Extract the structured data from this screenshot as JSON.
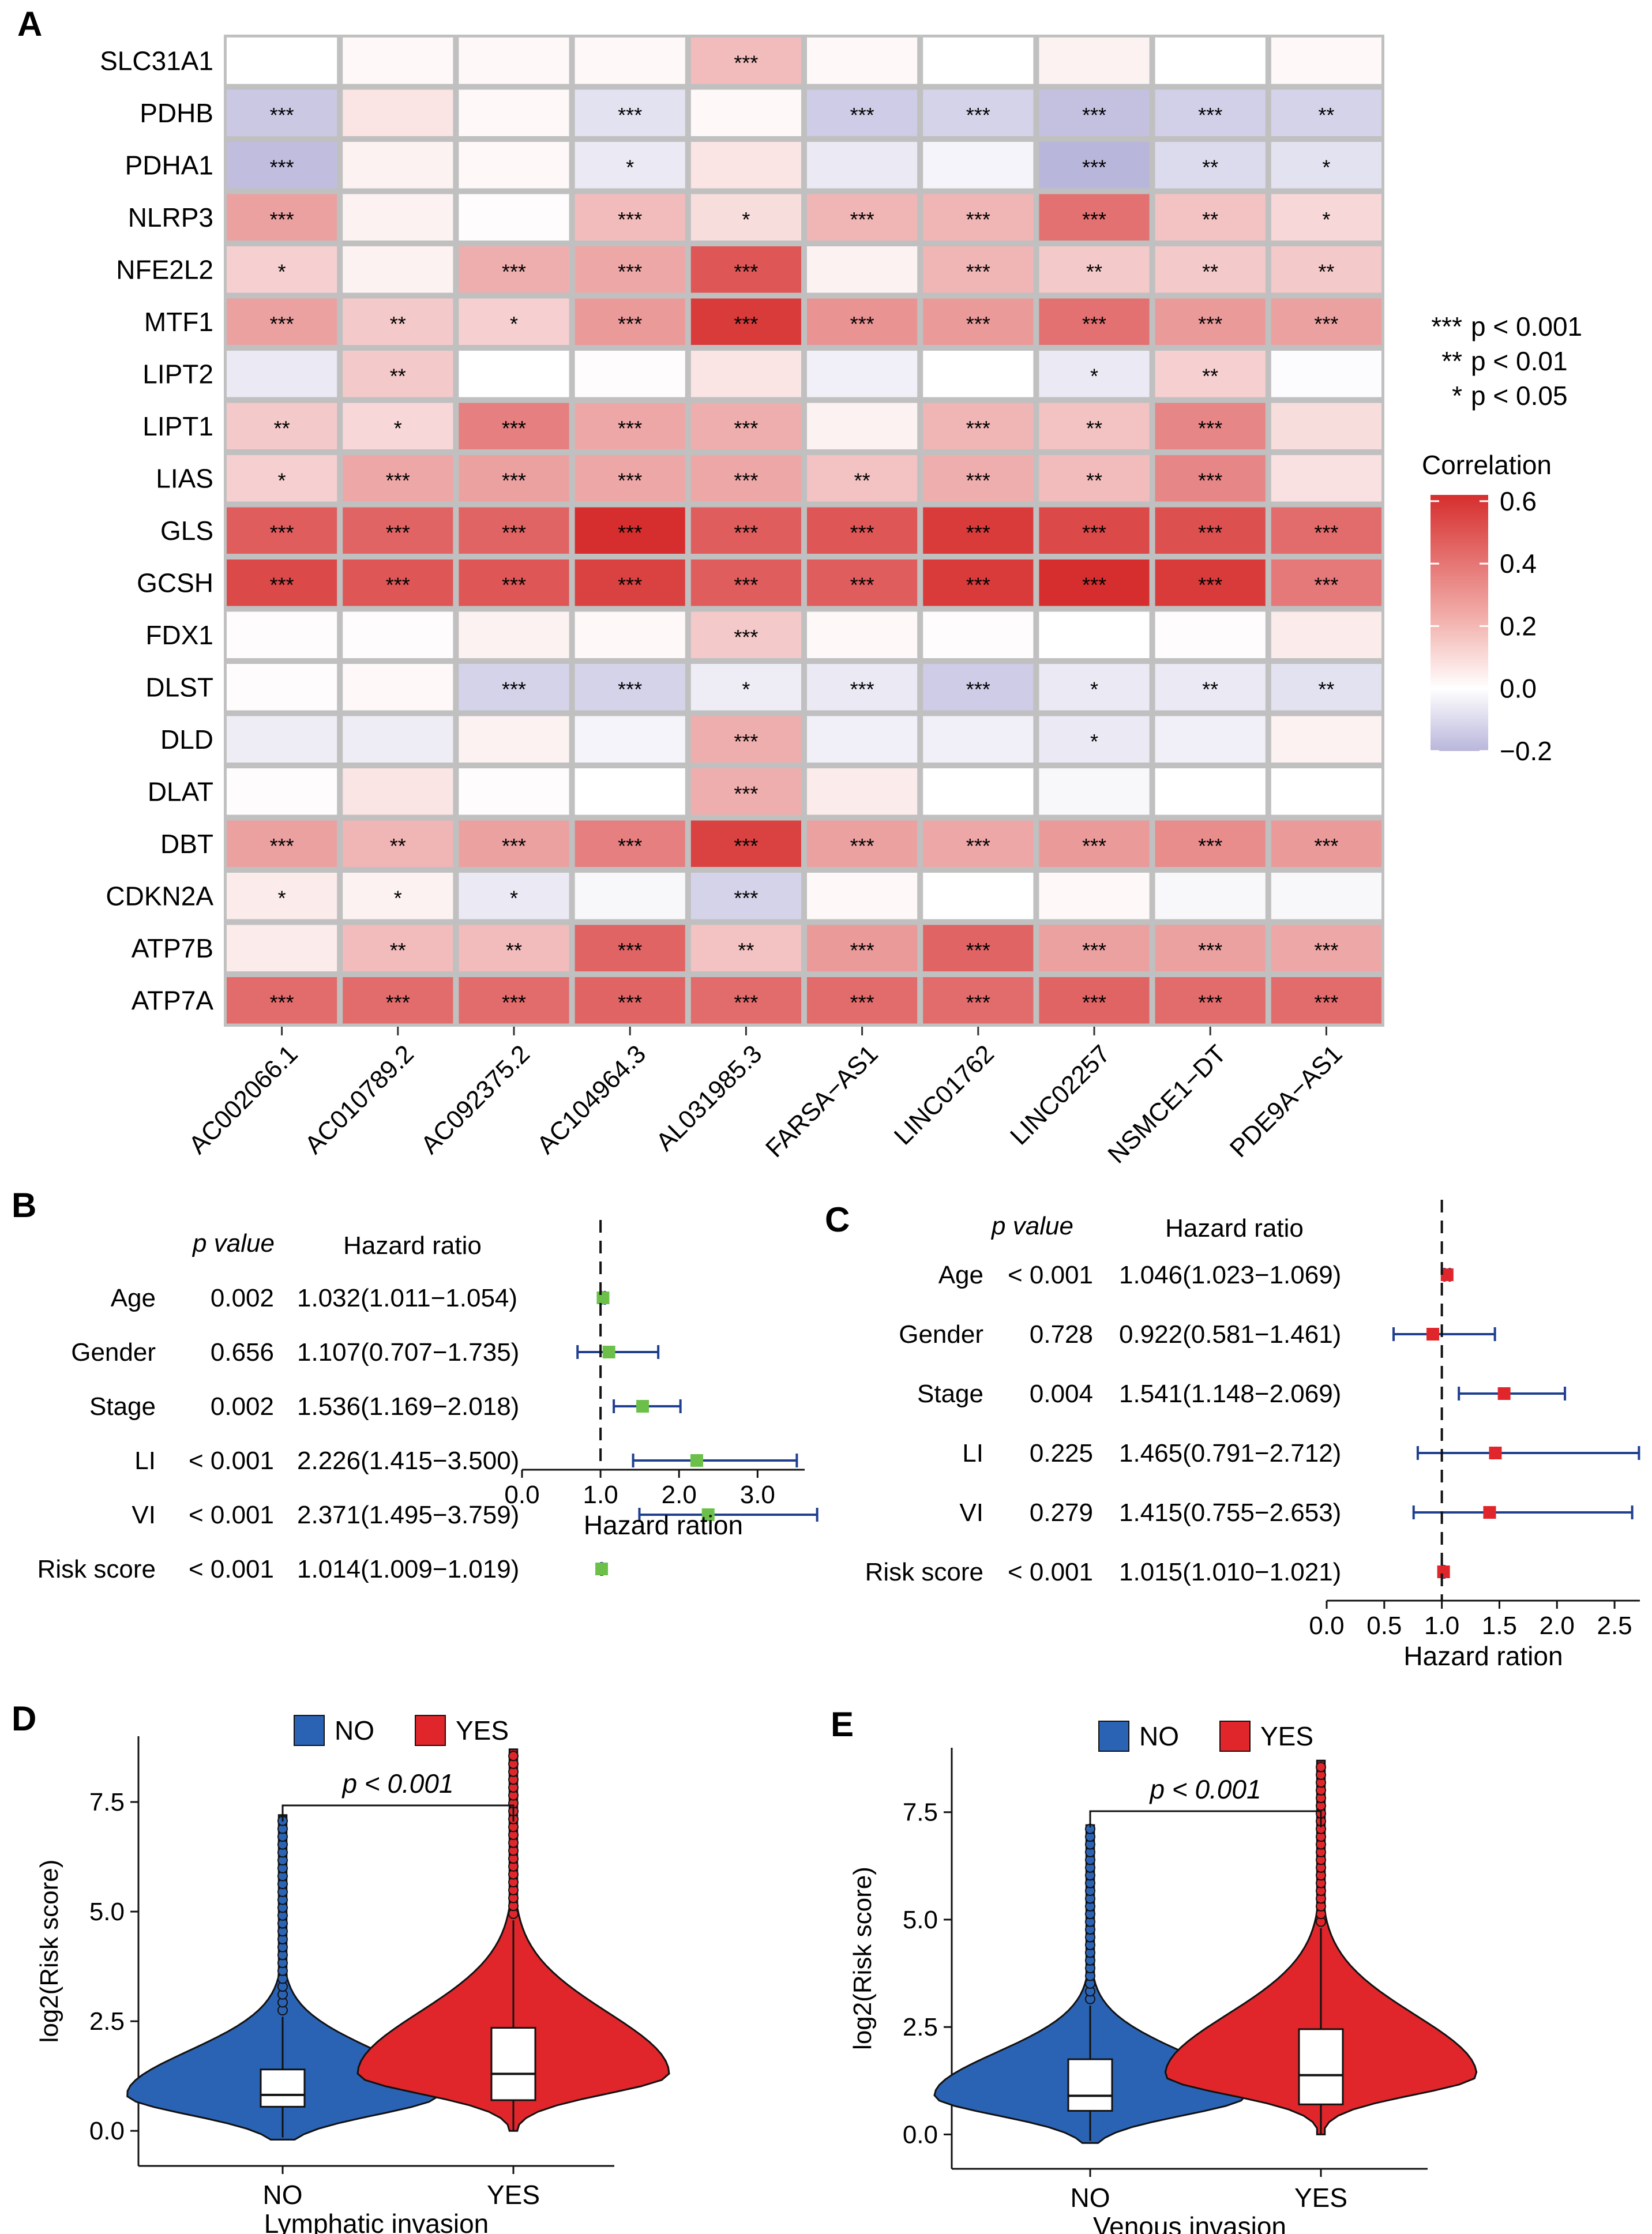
{
  "chart_data": [
    {
      "panel": "A",
      "type": "heatmap",
      "rows": [
        "SLC31A1",
        "PDHB",
        "PDHA1",
        "NLRP3",
        "NFE2L2",
        "MTF1",
        "LIPT2",
        "LIPT1",
        "LIAS",
        "GLS",
        "GCSH",
        "FDX1",
        "DLST",
        "DLD",
        "DLAT",
        "DBT",
        "CDKN2A",
        "ATP7B",
        "ATP7A"
      ],
      "columns": [
        "AC002066.1",
        "AC010789.2",
        "AC092375.2",
        "AC104964.3",
        "AL031985.3",
        "FARSA−AS1",
        "LINC01762",
        "LINC02257",
        "NSMCE1−DT",
        "PDE9A−AS1"
      ],
      "values": [
        [
          0.0,
          0.02,
          0.02,
          0.02,
          0.2,
          0.02,
          0.0,
          0.04,
          0.0,
          0.02
        ],
        [
          -0.15,
          0.08,
          0.02,
          -0.08,
          0.02,
          -0.14,
          -0.12,
          -0.17,
          -0.13,
          -0.12
        ],
        [
          -0.18,
          0.04,
          0.02,
          -0.06,
          0.08,
          -0.06,
          -0.03,
          -0.2,
          -0.1,
          -0.08
        ],
        [
          0.28,
          0.04,
          0.01,
          0.2,
          0.1,
          0.22,
          0.22,
          0.42,
          0.18,
          0.12
        ],
        [
          0.14,
          0.04,
          0.24,
          0.26,
          0.5,
          0.04,
          0.22,
          0.16,
          0.16,
          0.16
        ],
        [
          0.28,
          0.16,
          0.14,
          0.3,
          0.58,
          0.32,
          0.3,
          0.42,
          0.3,
          0.28
        ],
        [
          -0.06,
          0.16,
          0.0,
          0.01,
          0.08,
          -0.04,
          0.0,
          -0.06,
          0.14,
          -0.01
        ],
        [
          0.16,
          0.12,
          0.38,
          0.26,
          0.24,
          0.04,
          0.22,
          0.18,
          0.36,
          0.1
        ],
        [
          0.14,
          0.26,
          0.28,
          0.26,
          0.26,
          0.18,
          0.24,
          0.2,
          0.36,
          0.09
        ],
        [
          0.48,
          0.46,
          0.46,
          0.66,
          0.48,
          0.5,
          0.58,
          0.54,
          0.52,
          0.44
        ],
        [
          0.54,
          0.5,
          0.5,
          0.56,
          0.48,
          0.48,
          0.58,
          0.62,
          0.58,
          0.4
        ],
        [
          0.01,
          0.01,
          0.04,
          0.02,
          0.16,
          0.02,
          0.01,
          0.0,
          0.01,
          0.06
        ],
        [
          0.01,
          0.02,
          -0.12,
          -0.12,
          -0.05,
          -0.06,
          -0.14,
          -0.06,
          -0.06,
          -0.08
        ],
        [
          -0.05,
          -0.05,
          0.04,
          -0.03,
          0.24,
          -0.04,
          -0.04,
          -0.06,
          -0.04,
          0.04
        ],
        [
          0.01,
          0.08,
          0.01,
          0.0,
          0.24,
          0.06,
          0.0,
          -0.02,
          0.0,
          0.0
        ],
        [
          0.28,
          0.22,
          0.28,
          0.38,
          0.56,
          0.28,
          0.26,
          0.3,
          0.34,
          0.3
        ],
        [
          0.06,
          0.04,
          -0.06,
          -0.02,
          -0.12,
          0.02,
          0.0,
          0.02,
          -0.02,
          -0.02
        ],
        [
          0.06,
          0.2,
          0.2,
          0.46,
          0.18,
          0.3,
          0.46,
          0.28,
          0.28,
          0.26
        ],
        [
          0.44,
          0.44,
          0.44,
          0.46,
          0.44,
          0.44,
          0.44,
          0.46,
          0.44,
          0.44
        ]
      ],
      "significance": [
        [
          "",
          "",
          "",
          "",
          "***",
          "",
          "",
          "",
          "",
          ""
        ],
        [
          "***",
          "",
          "",
          "***",
          "",
          "***",
          "***",
          "***",
          "***",
          "**"
        ],
        [
          "***",
          "",
          "",
          "*",
          "",
          "",
          "",
          "***",
          "**",
          "*"
        ],
        [
          "***",
          "",
          "",
          "***",
          "*",
          "***",
          "***",
          "***",
          "**",
          "*"
        ],
        [
          "*",
          "",
          "***",
          "***",
          "***",
          "",
          "***",
          "**",
          "**",
          "**"
        ],
        [
          "***",
          "**",
          "*",
          "***",
          "***",
          "***",
          "***",
          "***",
          "***",
          "***"
        ],
        [
          "",
          "**",
          "",
          "",
          "",
          "",
          "",
          "*",
          "**",
          ""
        ],
        [
          "**",
          "*",
          "***",
          "***",
          "***",
          "",
          "***",
          "**",
          "***",
          ""
        ],
        [
          "*",
          "***",
          "***",
          "***",
          "***",
          "**",
          "***",
          "**",
          "***",
          ""
        ],
        [
          "***",
          "***",
          "***",
          "***",
          "***",
          "***",
          "***",
          "***",
          "***",
          "***"
        ],
        [
          "***",
          "***",
          "***",
          "***",
          "***",
          "***",
          "***",
          "***",
          "***",
          "***"
        ],
        [
          "",
          "",
          "",
          "",
          "***",
          "",
          "",
          "",
          "",
          ""
        ],
        [
          "",
          "",
          "***",
          "***",
          "*",
          "***",
          "***",
          "*",
          "**",
          "**"
        ],
        [
          "",
          "",
          "",
          "",
          "***",
          "",
          "",
          "*",
          "",
          ""
        ],
        [
          "",
          "",
          "",
          "",
          "***",
          "",
          "",
          "",
          "",
          ""
        ],
        [
          "***",
          "**",
          "***",
          "***",
          "***",
          "***",
          "***",
          "***",
          "***",
          "***"
        ],
        [
          "*",
          "*",
          "*",
          "",
          "***",
          "",
          "",
          "",
          "",
          ""
        ],
        [
          "",
          "**",
          "**",
          "***",
          "**",
          "***",
          "***",
          "***",
          "***",
          "***"
        ],
        [
          "***",
          "***",
          "***",
          "***",
          "***",
          "***",
          "***",
          "***",
          "***",
          "***"
        ]
      ],
      "legend_title": "Correlation",
      "legend_ticks": [
        "0.6",
        "0.4",
        "0.2",
        "0.0",
        "−0.2"
      ],
      "legend_range": [
        -0.2,
        0.62
      ],
      "sig_legend": [
        {
          "stars": "***",
          "text": "p < 0.001"
        },
        {
          "stars": "**",
          "text": "p < 0.01"
        },
        {
          "stars": "*",
          "text": "p < 0.05"
        }
      ],
      "colors": {
        "neg": "#b9b6db",
        "zero": "#ffffff",
        "pos": "#d62e2e"
      }
    },
    {
      "panel": "B",
      "type": "forest",
      "header_p": "p value",
      "header_hr": "Hazard ratio",
      "xlabel": "Hazard ration",
      "xlim": [
        0,
        3.6
      ],
      "ticks": [
        "0.0",
        "1.0",
        "2.0",
        "3.0"
      ],
      "tick_values": [
        0,
        1,
        2,
        3
      ],
      "marker_color": "#6cc04a",
      "rows": [
        {
          "label": "Age",
          "p": "0.002",
          "hr_text": "1.032(1.011−1.054)",
          "hr": 1.032,
          "lo": 1.011,
          "hi": 1.054
        },
        {
          "label": "Gender",
          "p": "0.656",
          "hr_text": "1.107(0.707−1.735)",
          "hr": 1.107,
          "lo": 0.707,
          "hi": 1.735
        },
        {
          "label": "Stage",
          "p": "0.002",
          "hr_text": "1.536(1.169−2.018)",
          "hr": 1.536,
          "lo": 1.169,
          "hi": 2.018
        },
        {
          "label": "LI",
          "p": "< 0.001",
          "hr_text": "2.226(1.415−3.500)",
          "hr": 2.226,
          "lo": 1.415,
          "hi": 3.5
        },
        {
          "label": "VI",
          "p": "< 0.001",
          "hr_text": "2.371(1.495−3.759)",
          "hr": 2.371,
          "lo": 1.495,
          "hi": 3.759
        },
        {
          "label": "Risk score",
          "p": "< 0.001",
          "hr_text": "1.014(1.009−1.019)",
          "hr": 1.014,
          "lo": 1.009,
          "hi": 1.019
        }
      ]
    },
    {
      "panel": "C",
      "type": "forest",
      "header_p": "p value",
      "header_hr": "Hazard ratio",
      "xlabel": "Hazard ration",
      "xlim": [
        0,
        2.72
      ],
      "ticks": [
        "0.0",
        "0.5",
        "1.0",
        "1.5",
        "2.0",
        "2.5"
      ],
      "tick_values": [
        0,
        0.5,
        1,
        1.5,
        2,
        2.5
      ],
      "marker_color": "#e0262b",
      "rows": [
        {
          "label": "Age",
          "p": "< 0.001",
          "hr_text": "1.046(1.023−1.069)",
          "hr": 1.046,
          "lo": 1.023,
          "hi": 1.069
        },
        {
          "label": "Gender",
          "p": "0.728",
          "hr_text": "0.922(0.581−1.461)",
          "hr": 0.922,
          "lo": 0.581,
          "hi": 1.461
        },
        {
          "label": "Stage",
          "p": "0.004",
          "hr_text": "1.541(1.148−2.069)",
          "hr": 1.541,
          "lo": 1.148,
          "hi": 2.069
        },
        {
          "label": "LI",
          "p": "0.225",
          "hr_text": "1.465(0.791−2.712)",
          "hr": 1.465,
          "lo": 0.791,
          "hi": 2.712
        },
        {
          "label": "VI",
          "p": "0.279",
          "hr_text": "1.415(0.755−2.653)",
          "hr": 1.415,
          "lo": 0.755,
          "hi": 2.653
        },
        {
          "label": "Risk score",
          "p": "< 0.001",
          "hr_text": "1.015(1.010−1.021)",
          "hr": 1.015,
          "lo": 1.01,
          "hi": 1.021
        }
      ]
    },
    {
      "panel": "D",
      "type": "violin",
      "legend": [
        {
          "name": "NO",
          "color": "#2b63b4"
        },
        {
          "name": "YES",
          "color": "#e0262b"
        }
      ],
      "categories": [
        "NO",
        "YES"
      ],
      "xlabel": "Lymphatic invasion",
      "ylabel": "log2(Risk score)",
      "ylim": [
        -0.8,
        9.0
      ],
      "yticks": [
        0,
        2.5,
        5,
        7.5
      ],
      "ytick_labels": [
        "0.0",
        "2.5",
        "5.0",
        "7.5"
      ],
      "p_text": "p < 0.001",
      "groups": [
        {
          "name": "NO",
          "min": -0.2,
          "q1": 0.55,
          "median": 0.82,
          "q3": 1.4,
          "whisker_lo": -0.15,
          "whisker_hi": 2.6,
          "max": 7.2
        },
        {
          "name": "YES",
          "min": 0.0,
          "q1": 0.7,
          "median": 1.3,
          "q3": 2.35,
          "whisker_lo": 0.0,
          "whisker_hi": 4.8,
          "max": 8.7
        }
      ]
    },
    {
      "panel": "E",
      "type": "violin",
      "legend": [
        {
          "name": "NO",
          "color": "#2b63b4"
        },
        {
          "name": "YES",
          "color": "#e0262b"
        }
      ],
      "categories": [
        "NO",
        "YES"
      ],
      "xlabel": "Venous invasion",
      "ylabel": "log2(Risk score)",
      "ylim": [
        -0.8,
        9.0
      ],
      "yticks": [
        0,
        2.5,
        5,
        7.5
      ],
      "ytick_labels": [
        "0.0",
        "2.5",
        "5.0",
        "7.5"
      ],
      "p_text": "p < 0.001",
      "groups": [
        {
          "name": "NO",
          "min": -0.2,
          "q1": 0.55,
          "median": 0.9,
          "q3": 1.75,
          "whisker_lo": -0.15,
          "whisker_hi": 3.0,
          "max": 7.2
        },
        {
          "name": "YES",
          "min": 0.0,
          "q1": 0.7,
          "median": 1.38,
          "q3": 2.45,
          "whisker_lo": 0.0,
          "whisker_hi": 4.8,
          "max": 8.7
        }
      ]
    }
  ]
}
